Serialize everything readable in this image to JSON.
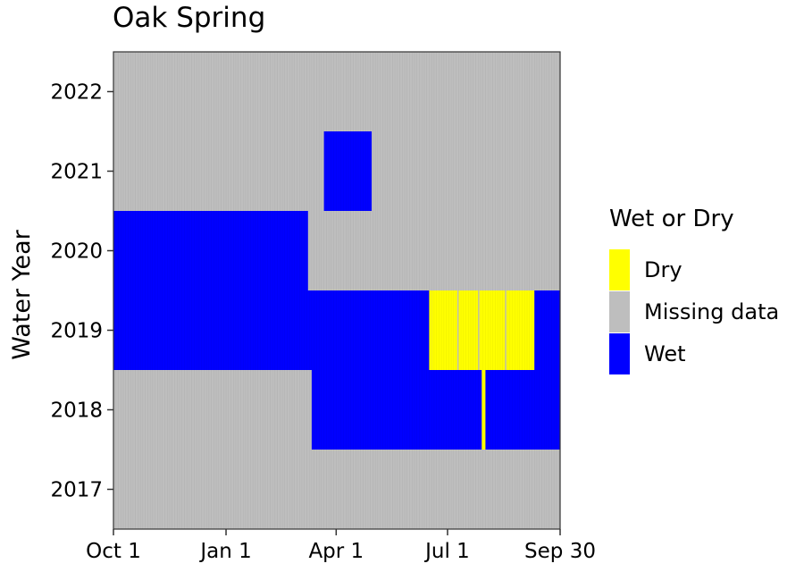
{
  "colors": {
    "dry": "#ffff00",
    "missing": "#bebebe",
    "wet": "#0000ff",
    "axis": "#333333",
    "tick": "#333333"
  },
  "chart_data": {
    "type": "heatmap",
    "title": "Oak Spring",
    "xlabel": "",
    "ylabel": "Water Year",
    "x_axis": {
      "unit": "day of water year (Oct 1 = day 1, Sep 30 = day 366)",
      "range": [
        1,
        366
      ],
      "ticks": [
        {
          "label": "Oct 1",
          "day": 1
        },
        {
          "label": "Jan 1",
          "day": 93
        },
        {
          "label": "Apr 1",
          "day": 183
        },
        {
          "label": "Jul 1",
          "day": 274
        },
        {
          "label": "Sep 30",
          "day": 366
        }
      ]
    },
    "y_axis": {
      "categories": [
        2017,
        2018,
        2019,
        2020,
        2021,
        2022
      ]
    },
    "legend": {
      "title": "Wet or Dry",
      "position": "right",
      "entries": [
        {
          "label": "Dry",
          "color_key": "dry"
        },
        {
          "label": "Missing data",
          "color_key": "missing"
        },
        {
          "label": "Wet",
          "color_key": "wet"
        }
      ]
    },
    "default_status": "Missing data",
    "series": [
      {
        "year": 2018,
        "segments": [
          {
            "start_day": 163,
            "end_day": 302,
            "status": "Wet"
          },
          {
            "start_day": 302,
            "end_day": 305,
            "status": "Dry"
          },
          {
            "start_day": 305,
            "end_day": 366,
            "status": "Wet"
          }
        ]
      },
      {
        "year": 2019,
        "segments": [
          {
            "start_day": 1,
            "end_day": 259,
            "status": "Wet"
          },
          {
            "start_day": 259,
            "end_day": 261,
            "status": "Dry"
          },
          {
            "start_day": 261,
            "end_day": 282,
            "status": "Dry"
          },
          {
            "start_day": 283,
            "end_day": 299,
            "status": "Dry"
          },
          {
            "start_day": 300,
            "end_day": 321,
            "status": "Dry"
          },
          {
            "start_day": 322,
            "end_day": 345,
            "status": "Dry"
          },
          {
            "start_day": 345,
            "end_day": 366,
            "status": "Wet"
          }
        ]
      },
      {
        "year": 2020,
        "segments": [
          {
            "start_day": 1,
            "end_day": 160,
            "status": "Wet"
          }
        ]
      },
      {
        "year": 2021,
        "segments": [
          {
            "start_day": 173,
            "end_day": 212,
            "status": "Wet"
          }
        ]
      }
    ],
    "grid": false
  }
}
